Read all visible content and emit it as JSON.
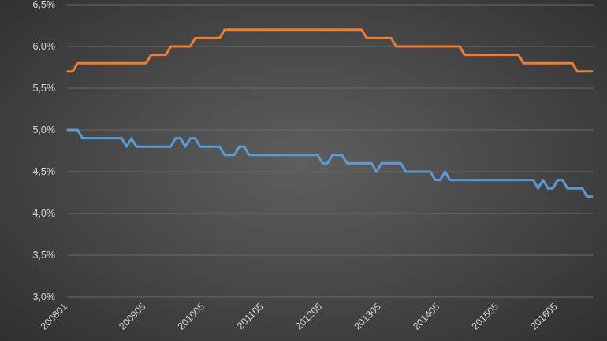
{
  "chart_data": {
    "type": "line",
    "title": "",
    "xlabel": "",
    "ylabel": "",
    "ylim": [
      3.0,
      6.5
    ],
    "y_ticks": [
      "3,0%",
      "3,5%",
      "4,0%",
      "4,5%",
      "5,0%",
      "5,5%",
      "6,0%",
      "6,5%"
    ],
    "y_tick_values": [
      3.0,
      3.5,
      4.0,
      4.5,
      5.0,
      5.5,
      6.0,
      6.5
    ],
    "x_tick_labels": [
      "200801",
      "200905",
      "201005",
      "201105",
      "201205",
      "201305",
      "201405",
      "201505",
      "201605"
    ],
    "grid": true,
    "legend": "none",
    "series": [
      {
        "color": "#ed7d31",
        "points": [
          [
            "200801",
            5.7
          ],
          [
            "200802",
            5.7
          ],
          [
            "200803",
            5.8
          ],
          [
            "200806",
            5.8
          ],
          [
            "200807",
            5.8
          ],
          [
            "200812",
            5.8
          ],
          [
            "200901",
            5.8
          ],
          [
            "200905",
            5.8
          ],
          [
            "200906",
            5.9
          ],
          [
            "200909",
            5.9
          ],
          [
            "200910",
            6.0
          ],
          [
            "201002",
            6.0
          ],
          [
            "201003",
            6.1
          ],
          [
            "201008",
            6.1
          ],
          [
            "201009",
            6.2
          ],
          [
            "201301",
            6.2
          ],
          [
            "201302",
            6.1
          ],
          [
            "201307",
            6.1
          ],
          [
            "201308",
            6.0
          ],
          [
            "201409",
            6.0
          ],
          [
            "201410",
            5.9
          ],
          [
            "201509",
            5.9
          ],
          [
            "201510",
            5.8
          ],
          [
            "201602",
            5.8
          ],
          [
            "201603",
            5.8
          ],
          [
            "201606",
            5.8
          ],
          [
            "201608",
            5.8
          ],
          [
            "201609",
            5.7
          ],
          [
            "201612",
            5.7
          ]
        ]
      },
      {
        "color": "#5b9bd5",
        "points": [
          [
            "200801",
            5.0
          ],
          [
            "200802",
            5.0
          ],
          [
            "200803",
            5.0
          ],
          [
            "200804",
            4.9
          ],
          [
            "200812",
            4.9
          ],
          [
            "200901",
            4.8
          ],
          [
            "200902",
            4.9
          ],
          [
            "200903",
            4.8
          ],
          [
            "200904",
            4.8
          ],
          [
            "200910",
            4.8
          ],
          [
            "200911",
            4.9
          ],
          [
            "200912",
            4.9
          ],
          [
            "201001",
            4.8
          ],
          [
            "201002",
            4.9
          ],
          [
            "201003",
            4.9
          ],
          [
            "201004",
            4.8
          ],
          [
            "201008",
            4.8
          ],
          [
            "201009",
            4.7
          ],
          [
            "201011",
            4.7
          ],
          [
            "201012",
            4.8
          ],
          [
            "201101",
            4.8
          ],
          [
            "201102",
            4.7
          ],
          [
            "201204",
            4.7
          ],
          [
            "201205",
            4.6
          ],
          [
            "201206",
            4.6
          ],
          [
            "201207",
            4.7
          ],
          [
            "201208",
            4.7
          ],
          [
            "201209",
            4.7
          ],
          [
            "201210",
            4.6
          ],
          [
            "201303",
            4.6
          ],
          [
            "201304",
            4.5
          ],
          [
            "201305",
            4.6
          ],
          [
            "201309",
            4.6
          ],
          [
            "201310",
            4.5
          ],
          [
            "201403",
            4.5
          ],
          [
            "201404",
            4.4
          ],
          [
            "201405",
            4.4
          ],
          [
            "201406",
            4.5
          ],
          [
            "201407",
            4.4
          ],
          [
            "201512",
            4.4
          ],
          [
            "201601",
            4.3
          ],
          [
            "201602",
            4.4
          ],
          [
            "201603",
            4.3
          ],
          [
            "201604",
            4.3
          ],
          [
            "201605",
            4.4
          ],
          [
            "201606",
            4.4
          ],
          [
            "201607",
            4.3
          ],
          [
            "201610",
            4.3
          ],
          [
            "201611",
            4.2
          ],
          [
            "201612",
            4.2
          ]
        ]
      }
    ]
  }
}
